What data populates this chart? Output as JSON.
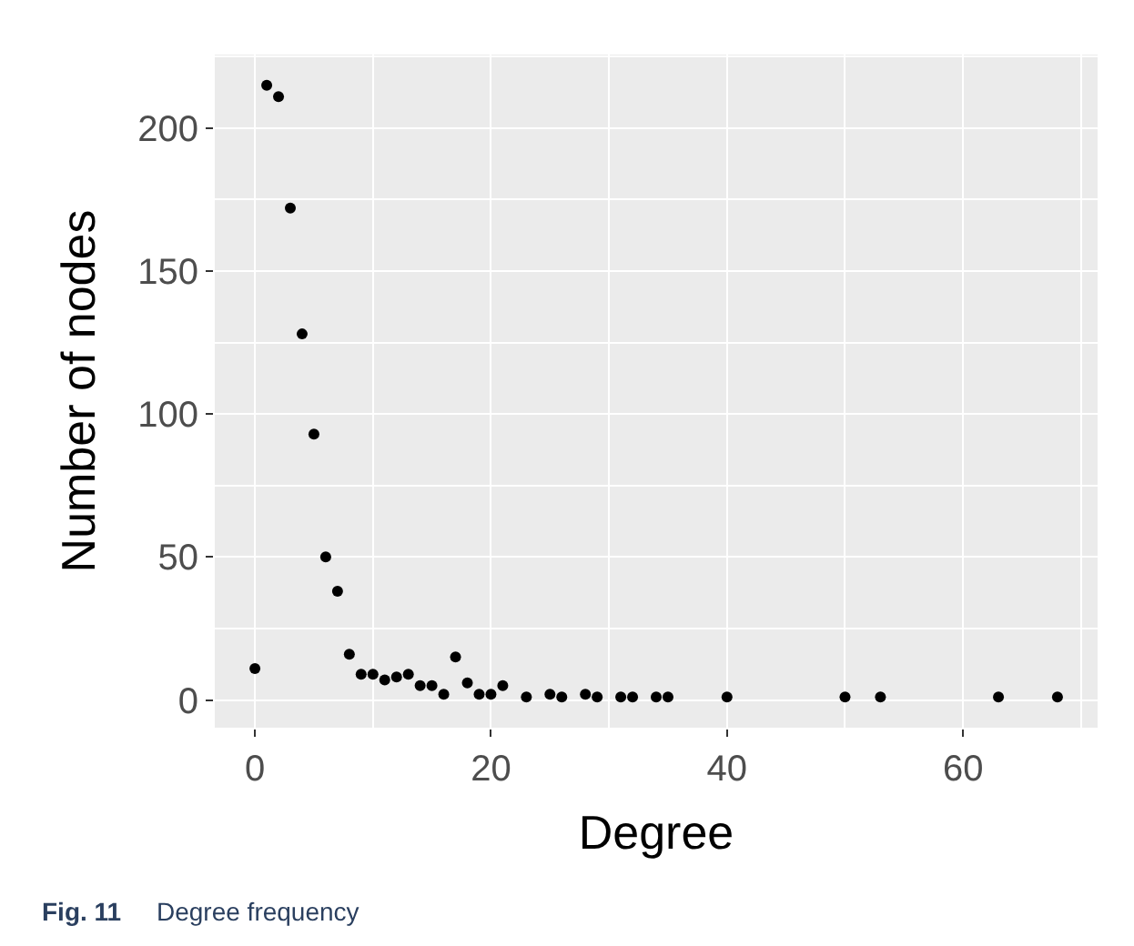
{
  "chart_data": {
    "type": "scatter",
    "xlabel": "Degree",
    "ylabel": "Number of nodes",
    "x": [
      0,
      1,
      2,
      3,
      4,
      5,
      6,
      7,
      8,
      9,
      10,
      11,
      12,
      13,
      14,
      15,
      16,
      17,
      18,
      19,
      20,
      21,
      23,
      25,
      26,
      28,
      29,
      31,
      32,
      34,
      35,
      40,
      50,
      53,
      63,
      68
    ],
    "series": [
      {
        "color": "#000000",
        "values": [
          11,
          215,
          211,
          172,
          128,
          93,
          50,
          38,
          16,
          9,
          9,
          7,
          8,
          9,
          5,
          5,
          2,
          15,
          6,
          2,
          2,
          5,
          1,
          2,
          1,
          2,
          1,
          1,
          1,
          1,
          1,
          1,
          1,
          1,
          1,
          1
        ]
      }
    ],
    "xlim": [
      -3.4,
      71.4
    ],
    "xticks": [
      0,
      20,
      40,
      60
    ],
    "ylim": [
      -9.7,
      225.7
    ],
    "yticks": [
      0,
      50,
      100,
      150,
      200
    ],
    "grid": true,
    "marker": "circle",
    "legend": false,
    "annotations": [
      "Fig. 11",
      "Degree frequency"
    ]
  }
}
